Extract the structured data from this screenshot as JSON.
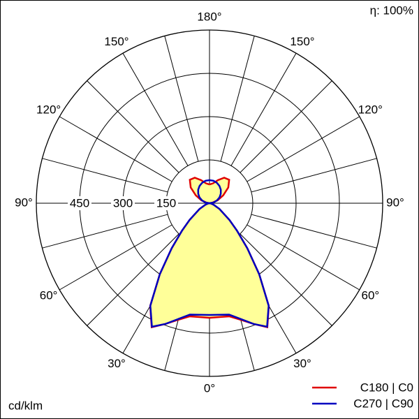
{
  "chart_data": {
    "type": "polar",
    "efficiency_label": "η: 100%",
    "unit_label": "cd/klm",
    "angles": [
      0,
      5,
      10,
      15,
      20,
      25,
      30,
      35,
      40,
      45,
      50,
      60,
      70,
      80,
      90,
      100,
      110,
      120,
      130,
      140,
      150,
      160,
      170,
      180
    ],
    "series": [
      {
        "name": "C180 | C0",
        "color": "#e00000",
        "fill": "#ffff99",
        "values": [
          397,
          396,
          398,
          418,
          445,
          474,
          411,
          300,
          204,
          135,
          90,
          40,
          15,
          5,
          0,
          10,
          30,
          55,
          85,
          106,
          102,
          85,
          70,
          65
        ]
      },
      {
        "name": "C270 | C90",
        "color": "#0000c0",
        "values": [
          387,
          388,
          392,
          415,
          445,
          472,
          410,
          300,
          204,
          135,
          90,
          40,
          15,
          5,
          0,
          14,
          27,
          40,
          51,
          61,
          69,
          75,
          79,
          80
        ]
      }
    ],
    "rlim": [
      0,
      600
    ],
    "rticks": [
      150,
      300,
      450
    ],
    "agrid": [
      0,
      15,
      30,
      45,
      60,
      75,
      90,
      105,
      120,
      135,
      150,
      165,
      180
    ],
    "aticks": [
      {
        "value": 0,
        "label": "0°"
      },
      {
        "value": 30,
        "label": "30°"
      },
      {
        "value": 60,
        "label": "60°"
      },
      {
        "value": 90,
        "label": "90°"
      },
      {
        "value": 120,
        "label": "120°"
      },
      {
        "value": 150,
        "label": "150°"
      },
      {
        "value": 180,
        "label": "180°"
      }
    ]
  }
}
